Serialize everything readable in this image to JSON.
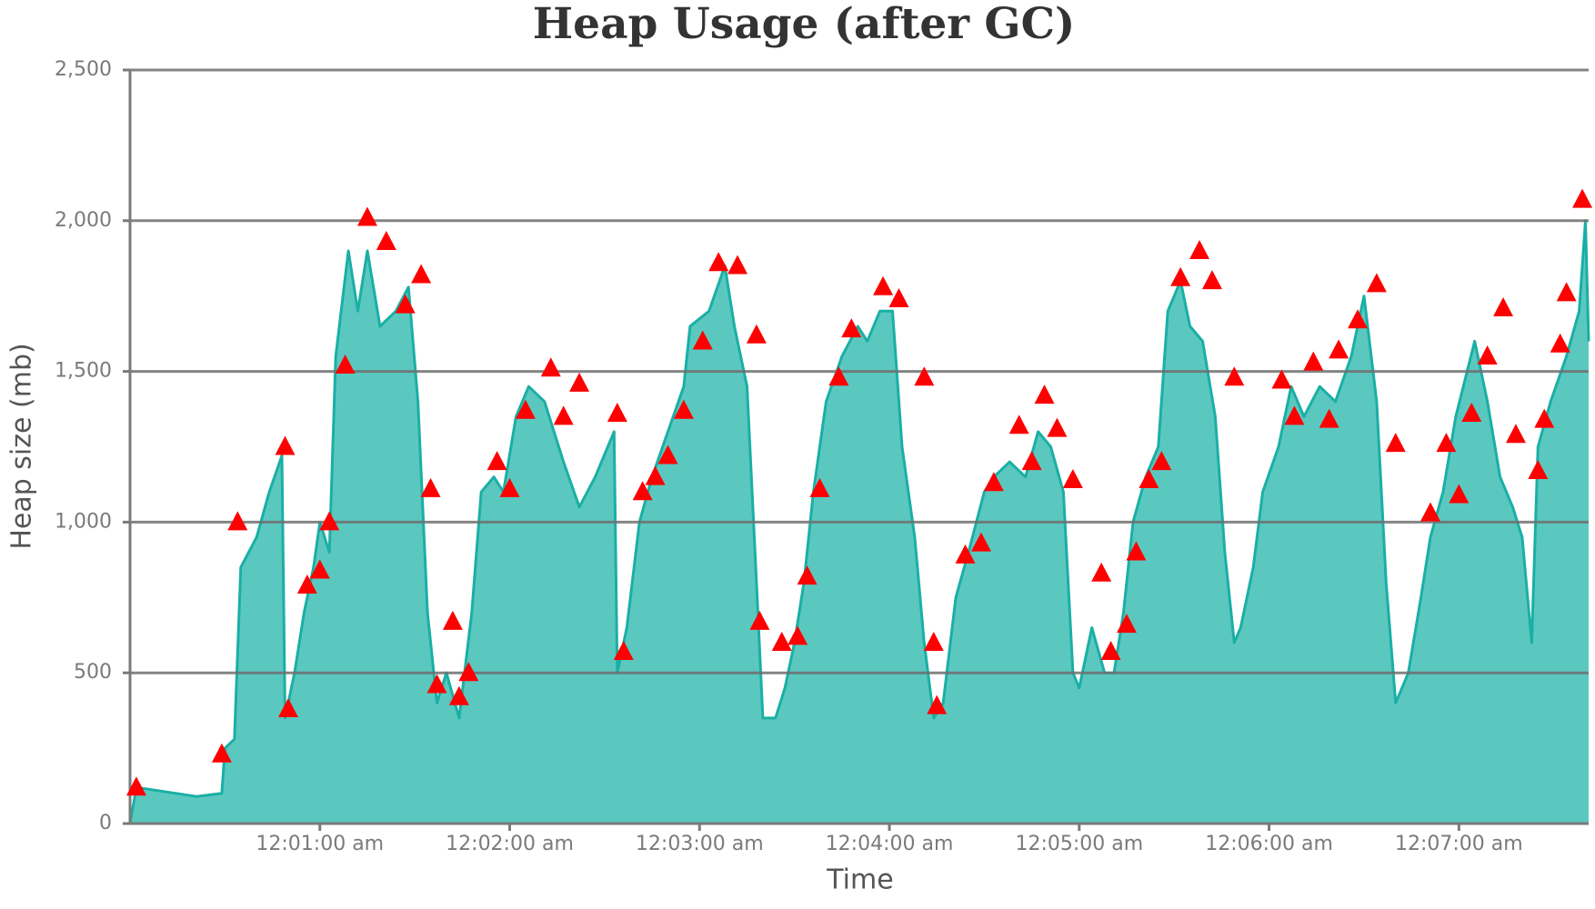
{
  "chart_data": {
    "type": "area",
    "title": "Heap Usage (after GC)",
    "x_label": "Time",
    "y_label": "Heap size (mb)",
    "xlim": [
      "12:00:00 am",
      "12:07:41 am"
    ],
    "xticks": [
      "12:01:00 am",
      "12:02:00 am",
      "12:03:00 am",
      "12:04:00 am",
      "12:05:00 am",
      "12:06:00 am",
      "12:07:00 am"
    ],
    "ylim": [
      0,
      2500
    ],
    "yticks": [
      0,
      500,
      {
        "value": 1000,
        "label": "1,000"
      },
      {
        "value": 1500,
        "label": "1,500"
      },
      {
        "value": 2000,
        "label": "2,000"
      },
      {
        "value": 2500,
        "label": "2,500"
      }
    ],
    "grid": true,
    "series": [
      {
        "color": "#1aafa5",
        "fill": "#5bc8c0",
        "x": [
          "12:00:00 am",
          "12:00:02 am",
          "12:00:21 am",
          "12:00:29 am",
          "12:00:30 am",
          "12:00:33 am",
          "12:00:35 am",
          "12:00:40 am",
          "12:00:44 am",
          "12:00:48 am",
          "12:00:49 am",
          "12:00:52 am",
          "12:00:55 am",
          "12:00:58 am",
          "12:01:00 am",
          "12:01:03 am",
          "12:01:05 am",
          "12:01:09 am",
          "12:01:12 am",
          "12:01:15 am",
          "12:01:19 am",
          "12:01:24 am",
          "12:01:28 am",
          "12:01:31 am",
          "12:01:34 am",
          "12:01:37 am",
          "12:01:40 am",
          "12:01:44 am",
          "12:01:48 am",
          "12:01:51 am",
          "12:01:55 am",
          "12:01:58 am",
          "12:02:02 am",
          "12:02:06 am",
          "12:02:11 am",
          "12:02:17 am",
          "12:02:22 am",
          "12:02:27 am",
          "12:02:33 am",
          "12:02:34 am",
          "12:02:37 am",
          "12:02:41 am",
          "12:02:45 am",
          "12:02:50 am",
          "12:02:55 am",
          "12:02:57 am",
          "12:03:03 am",
          "12:03:08 am",
          "12:03:11 am",
          "12:03:15 am",
          "12:03:18 am",
          "12:03:20 am",
          "12:03:24 am",
          "12:03:27 am",
          "12:03:30 am",
          "12:03:33 am",
          "12:03:36 am",
          "12:03:40 am",
          "12:03:45 am",
          "12:03:50 am",
          "12:03:53 am",
          "12:03:57 am",
          "12:04:01 am",
          "12:04:04 am",
          "12:04:08 am",
          "12:04:11 am",
          "12:04:14 am",
          "12:04:17 am",
          "12:04:21 am",
          "12:04:25 am",
          "12:04:30 am",
          "12:04:33 am",
          "12:04:38 am",
          "12:04:43 am",
          "12:04:47 am",
          "12:04:51 am",
          "12:04:55 am",
          "12:04:58 am",
          "12:05:00 am",
          "12:05:04 am",
          "12:05:08 am",
          "12:05:11 am",
          "12:05:14 am",
          "12:05:17 am",
          "12:05:21 am",
          "12:05:25 am",
          "12:05:28 am",
          "12:05:32 am",
          "12:05:35 am",
          "12:05:39 am",
          "12:05:43 am",
          "12:05:46 am",
          "12:05:49 am",
          "12:05:51 am",
          "12:05:55 am",
          "12:05:58 am",
          "12:06:03 am",
          "12:06:07 am",
          "12:06:11 am",
          "12:06:16 am",
          "12:06:21 am",
          "12:06:26 am",
          "12:06:30 am",
          "12:06:34 am",
          "12:06:37 am",
          "12:06:40 am",
          "12:06:44 am",
          "12:06:48 am",
          "12:06:51 am",
          "12:06:55 am",
          "12:06:59 am",
          "12:07:05 am",
          "12:07:09 am",
          "12:07:13 am",
          "12:07:17 am",
          "12:07:20 am",
          "12:07:23 am",
          "12:07:25 am",
          "12:07:29 am",
          "12:07:34 am",
          "12:07:38 am",
          "12:07:40 am",
          "12:07:41 am"
        ],
        "values": [
          0,
          120,
          90,
          100,
          250,
          280,
          850,
          950,
          1100,
          1220,
          350,
          500,
          700,
          850,
          1000,
          900,
          1550,
          1900,
          1700,
          1900,
          1650,
          1700,
          1780,
          1400,
          700,
          400,
          500,
          350,
          700,
          1100,
          1150,
          1100,
          1350,
          1450,
          1400,
          1200,
          1050,
          1150,
          1300,
          500,
          650,
          1000,
          1150,
          1300,
          1450,
          1650,
          1700,
          1850,
          1650,
          1450,
          800,
          350,
          350,
          450,
          600,
          800,
          1100,
          1400,
          1550,
          1650,
          1600,
          1700,
          1700,
          1250,
          950,
          600,
          350,
          400,
          750,
          900,
          1100,
          1150,
          1200,
          1150,
          1300,
          1250,
          1100,
          500,
          450,
          650,
          500,
          500,
          700,
          1000,
          1150,
          1250,
          1700,
          1800,
          1650,
          1600,
          1350,
          900,
          600,
          650,
          850,
          1100,
          1250,
          1450,
          1350,
          1450,
          1400,
          1550,
          1750,
          1400,
          800,
          400,
          500,
          750,
          950,
          1100,
          1350,
          1600,
          1400,
          1150,
          1050,
          950,
          600,
          1250,
          1400,
          1550,
          1700,
          2000,
          1600
        ]
      }
    ],
    "markers": {
      "color": "#ff0000",
      "x": [
        "12:00:02 am",
        "12:00:29 am",
        "12:00:34 am",
        "12:00:49 am",
        "12:00:50 am",
        "12:00:56 am",
        "12:01:00 am",
        "12:01:03 am",
        "12:01:08 am",
        "12:01:15 am",
        "12:01:21 am",
        "12:01:27 am",
        "12:01:32 am",
        "12:01:35 am",
        "12:01:37 am",
        "12:01:42 am",
        "12:01:44 am",
        "12:01:47 am",
        "12:01:56 am",
        "12:02:00 am",
        "12:02:05 am",
        "12:02:13 am",
        "12:02:17 am",
        "12:02:22 am",
        "12:02:34 am",
        "12:02:36 am",
        "12:02:42 am",
        "12:02:46 am",
        "12:02:50 am",
        "12:02:55 am",
        "12:03:01 am",
        "12:03:06 am",
        "12:03:12 am",
        "12:03:18 am",
        "12:03:19 am",
        "12:03:26 am",
        "12:03:31 am",
        "12:03:34 am",
        "12:03:38 am",
        "12:03:44 am",
        "12:03:48 am",
        "12:03:58 am",
        "12:04:03 am",
        "12:04:11 am",
        "12:04:14 am",
        "12:04:15 am",
        "12:04:24 am",
        "12:04:29 am",
        "12:04:33 am",
        "12:04:41 am",
        "12:04:45 am",
        "12:04:49 am",
        "12:04:53 am",
        "12:04:58 am",
        "12:05:07 am",
        "12:05:10 am",
        "12:05:15 am",
        "12:05:18 am",
        "12:05:22 am",
        "12:05:26 am",
        "12:05:32 am",
        "12:05:38 am",
        "12:05:42 am",
        "12:05:49 am",
        "12:06:04 am",
        "12:06:08 am",
        "12:06:14 am",
        "12:06:19 am",
        "12:06:22 am",
        "12:06:28 am",
        "12:06:34 am",
        "12:06:40 am",
        "12:06:51 am",
        "12:06:56 am",
        "12:07:00 am",
        "12:07:04 am",
        "12:07:09 am",
        "12:07:14 am",
        "12:07:18 am",
        "12:07:25 am",
        "12:07:27 am",
        "12:07:32 am",
        "12:07:34 am",
        "12:07:39 am"
      ],
      "values": [
        120,
        230,
        1000,
        1250,
        380,
        790,
        840,
        1000,
        1520,
        2010,
        1930,
        1720,
        1820,
        1110,
        460,
        670,
        420,
        500,
        1200,
        1110,
        1370,
        1510,
        1350,
        1460,
        1360,
        570,
        1100,
        1150,
        1220,
        1370,
        1600,
        1860,
        1850,
        1620,
        670,
        600,
        620,
        820,
        1110,
        1480,
        1640,
        1780,
        1740,
        1480,
        600,
        390,
        890,
        930,
        1130,
        1320,
        1200,
        1420,
        1310,
        1140,
        830,
        570,
        660,
        900,
        1140,
        1200,
        1810,
        1900,
        1800,
        1480,
        1470,
        1350,
        1530,
        1340,
        1570,
        1670,
        1790,
        1260,
        1030,
        1260,
        1090,
        1360,
        1550,
        1710,
        1290,
        1170,
        1340,
        1590,
        1760,
        2070
      ]
    }
  }
}
